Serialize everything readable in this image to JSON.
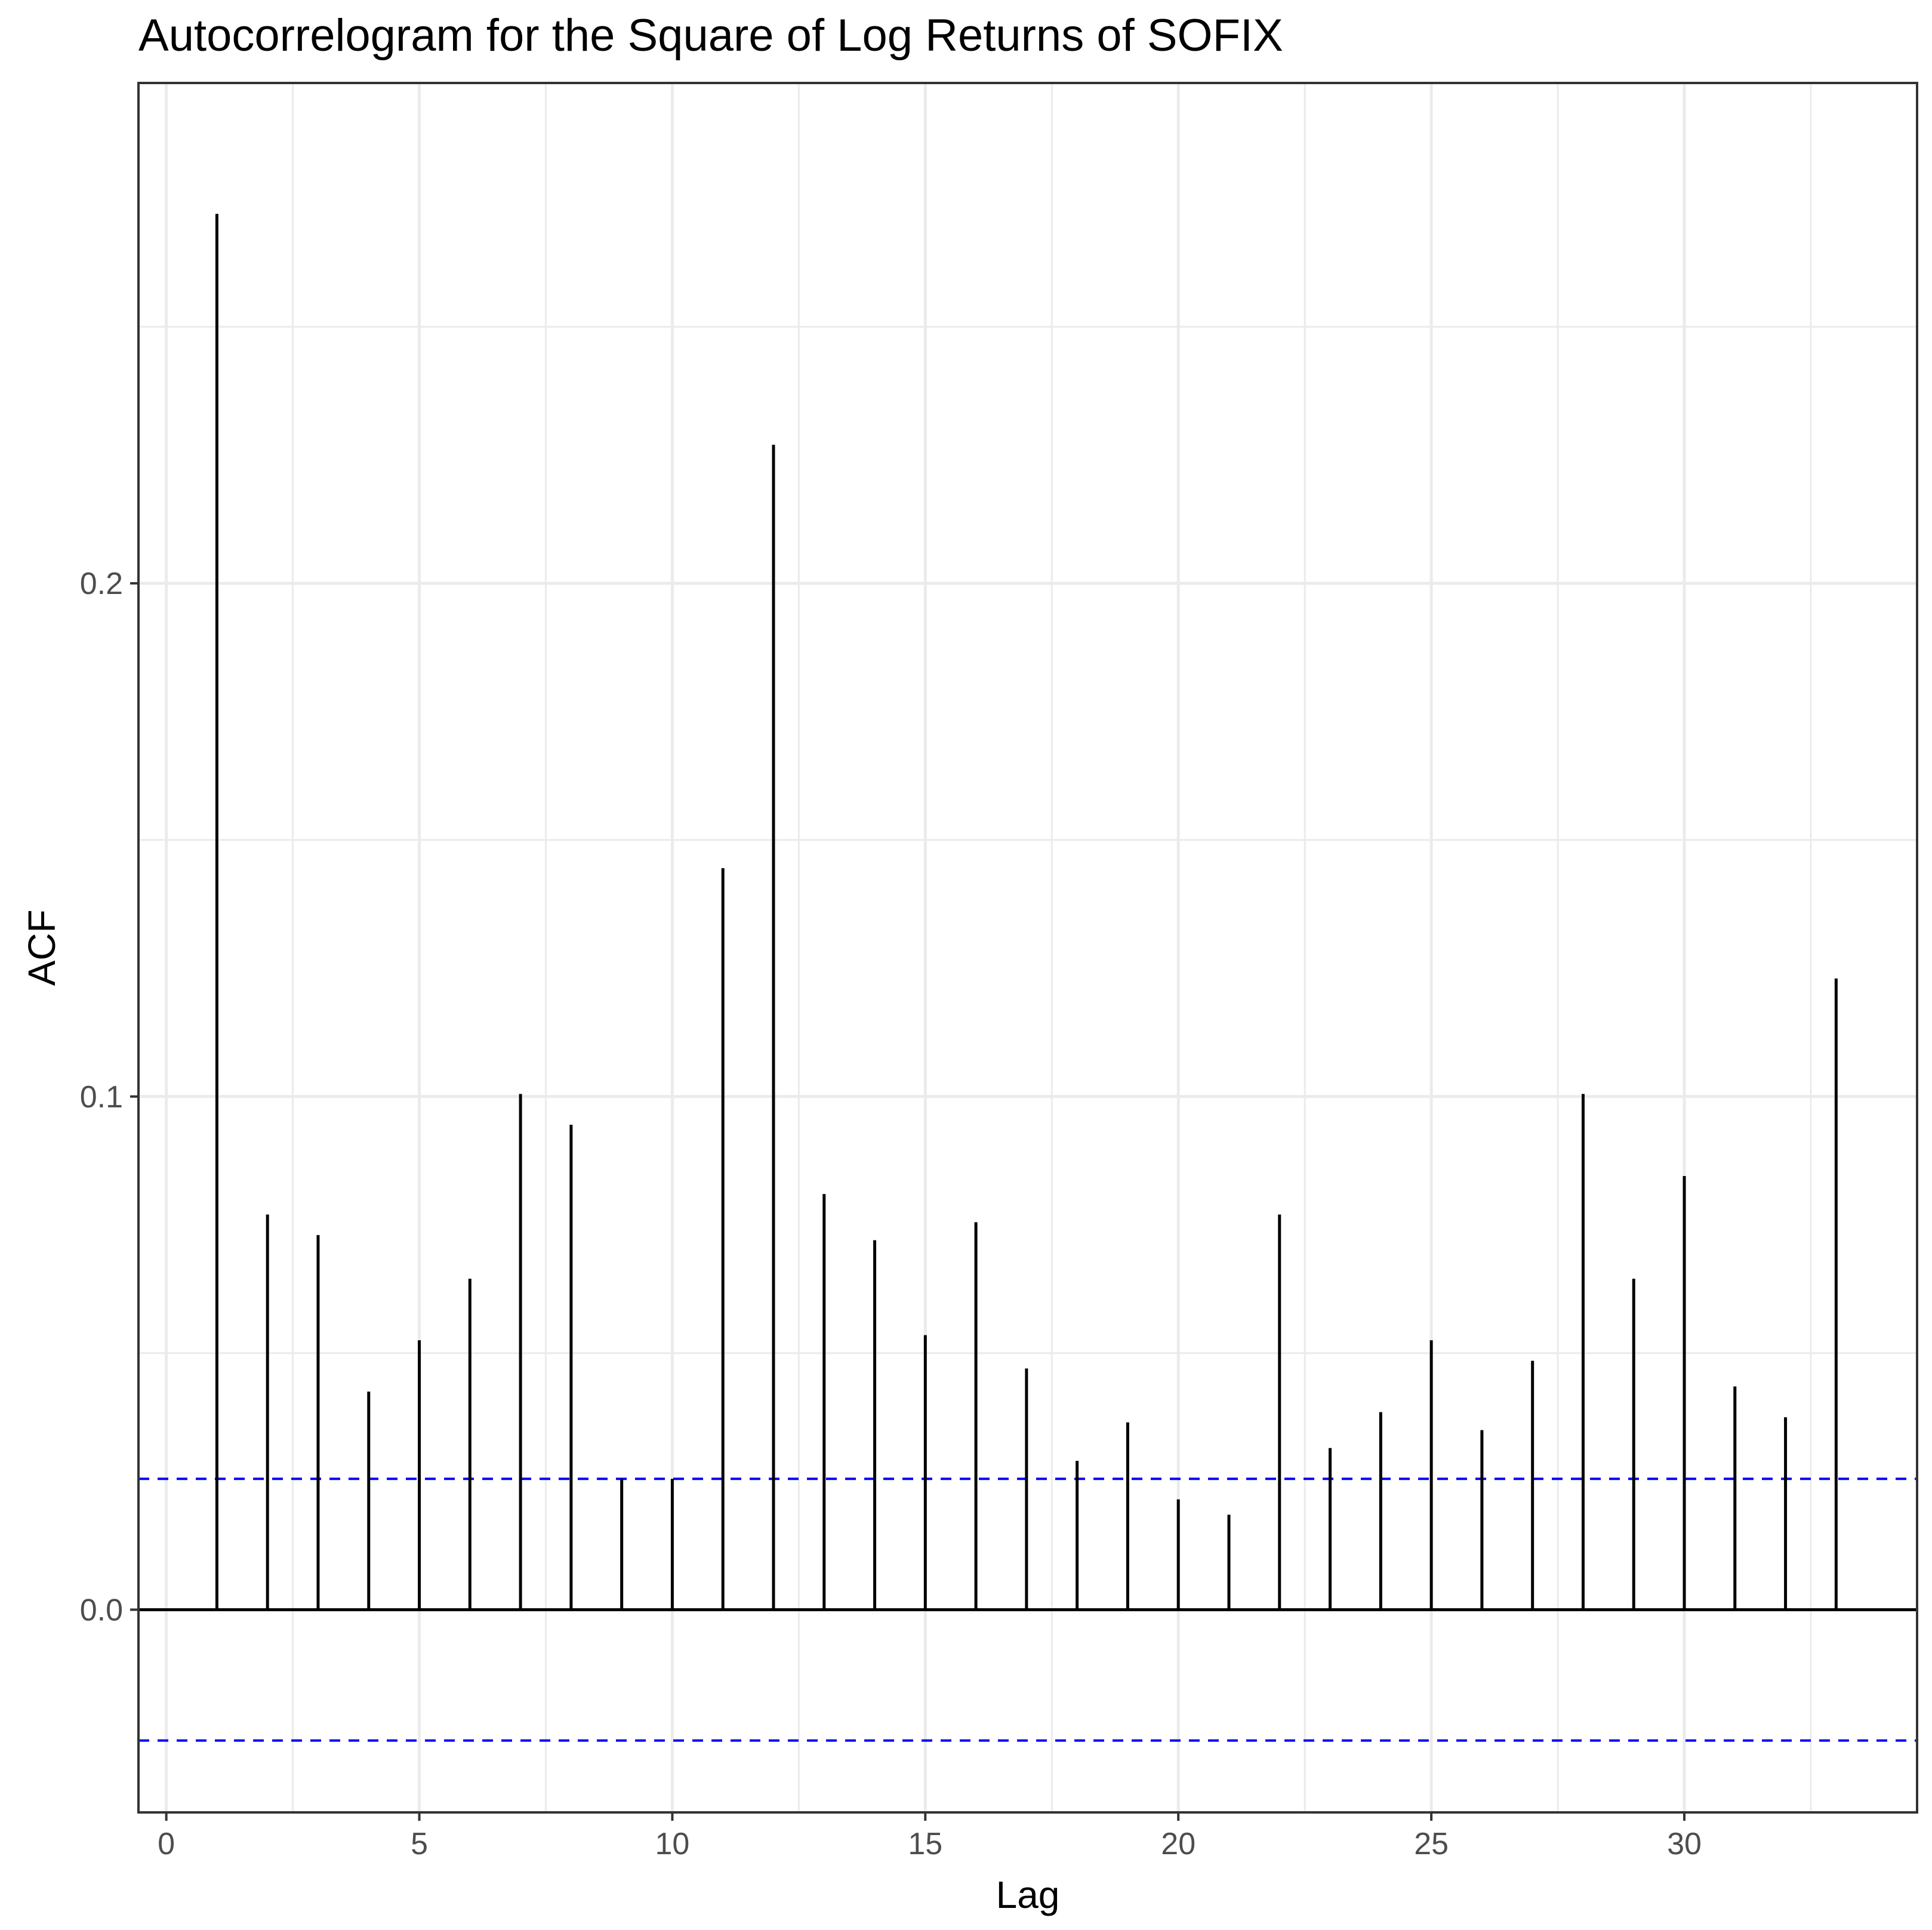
{
  "chart_data": {
    "type": "bar",
    "title": "Autocorrelogram for the Square of Log Returns of SOFIX",
    "xlabel": "Lag",
    "ylabel": "ACF",
    "x": [
      1,
      2,
      3,
      4,
      5,
      6,
      7,
      8,
      9,
      10,
      11,
      12,
      13,
      14,
      15,
      16,
      17,
      18,
      19,
      20,
      21,
      22,
      23,
      24,
      25,
      26,
      27,
      28,
      29,
      30,
      31,
      32,
      33
    ],
    "values": [
      0.272,
      0.077,
      0.073,
      0.0425,
      0.0525,
      0.0645,
      0.1005,
      0.0945,
      0.0255,
      0.0255,
      0.1445,
      0.227,
      0.081,
      0.072,
      0.0535,
      0.0755,
      0.047,
      0.029,
      0.0365,
      0.0215,
      0.0185,
      0.077,
      0.0315,
      0.0385,
      0.0525,
      0.035,
      0.0485,
      0.1005,
      0.0645,
      0.0845,
      0.0435,
      0.0375,
      0.123
    ],
    "confidence_band": [
      -0.0255,
      0.0255
    ],
    "xlim": [
      -0.55,
      34.6
    ],
    "ylim": [
      -0.0395,
      0.2975
    ],
    "x_ticks": [
      0,
      5,
      10,
      15,
      20,
      25,
      30
    ],
    "x_tick_labels": [
      "0",
      "5",
      "10",
      "15",
      "20",
      "25",
      "30"
    ],
    "y_ticks": [
      0.0,
      0.1,
      0.2
    ],
    "y_tick_labels": [
      "0.0",
      "0.1",
      "0.2"
    ],
    "y_minor_ticks": [
      0.05,
      0.15,
      0.25
    ],
    "grid": true,
    "colors": {
      "bars": "#000000",
      "confidence_band": "#0000ff",
      "grid": "#ebebeb",
      "panel_border": "#333333"
    }
  }
}
